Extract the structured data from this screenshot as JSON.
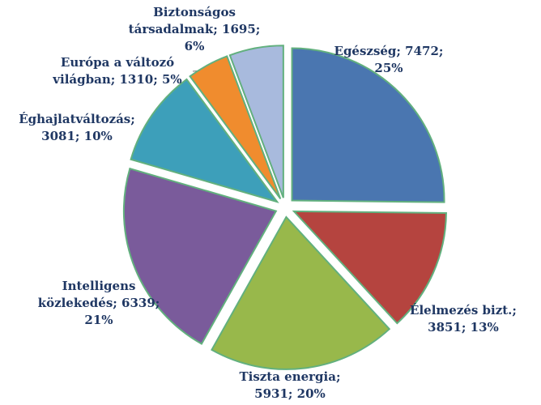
{
  "chart_data": {
    "type": "pie",
    "values": [
      7472,
      3851,
      5931,
      6339,
      3081,
      1310,
      1695
    ],
    "value_labels": [
      [
        "Egészség; 7472;",
        "25%"
      ],
      [
        "Élelmezés bizt.;",
        "3851; 13%"
      ],
      [
        "Tiszta energia;",
        "5931; 20%"
      ],
      [
        "Intelligens",
        "közlekedés; 6339;",
        "21%"
      ],
      [
        "Éghajlatváltozás;",
        "3081; 10%"
      ],
      [
        "Európa a változó",
        "világban; 1310; 5%"
      ],
      [
        "Biztonságos",
        "társadalmak; 1695;",
        "6%"
      ]
    ],
    "colors": [
      "#4a76b0",
      "#b5443f",
      "#98b84b",
      "#7a5b9b",
      "#3d9fba",
      "#f08c2e",
      "#a8badd"
    ]
  }
}
